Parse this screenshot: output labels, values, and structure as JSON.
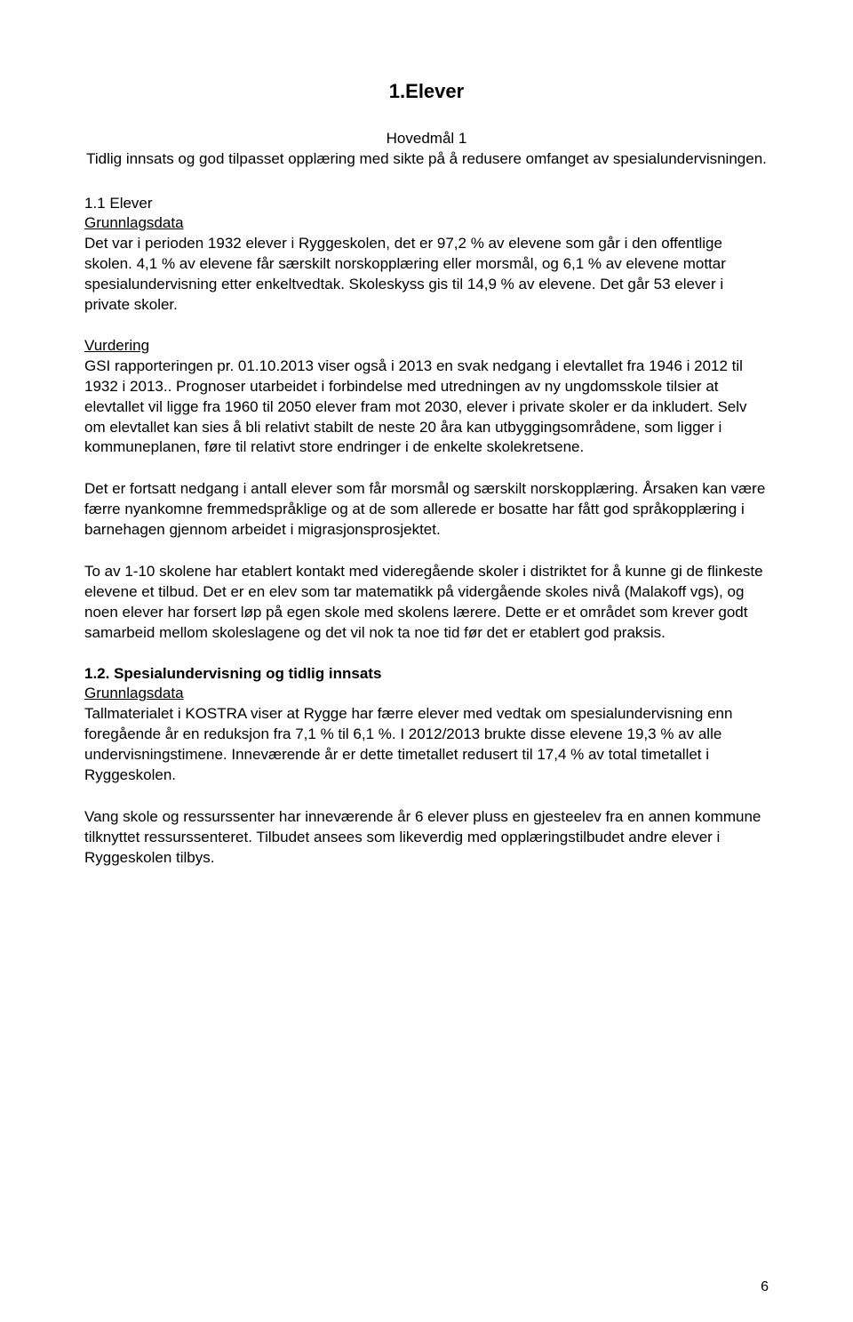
{
  "title": "1.Elever",
  "hovedmal_label": "Hovedmål 1",
  "hovedmal_text": "Tidlig innsats og god tilpasset opplæring med sikte på å redusere omfanget av spesialundervisningen.",
  "section_1_1": {
    "heading": "1.1 Elever",
    "grunnlag_label": "Grunnlagsdata",
    "grunnlag_text": "Det var i perioden 1932 elever i Ryggeskolen, det er 97,2 % av elevene som går i den offentlige skolen. 4,1 % av elevene får særskilt norskopplæring eller morsmål, og 6,1 % av elevene mottar spesialundervisning etter enkeltvedtak. Skoleskyss gis til 14,9 % av elevene. Det går 53 elever i private skoler.",
    "vurdering_label": "Vurdering",
    "vurdering_p1": "GSI rapporteringen pr. 01.10.2013 viser også i 2013 en svak nedgang i elevtallet fra 1946 i 2012 til 1932 i 2013.. Prognoser utarbeidet i forbindelse med utredningen av ny ungdomsskole tilsier at elevtallet vil ligge fra 1960 til 2050 elever fram mot 2030, elever i private skoler er da inkludert. Selv om elevtallet kan sies å bli relativt stabilt de neste 20 åra kan utbyggingsområdene, som ligger i kommuneplanen, føre til relativt store endringer i de enkelte skolekretsene.",
    "vurdering_p2": "Det er fortsatt nedgang i antall elever som får morsmål og særskilt norskopplæring. Årsaken kan være færre nyankomne fremmedspråklige og at de som allerede er bosatte har fått god språkopplæring i barnehagen gjennom arbeidet i migrasjonsprosjektet.",
    "vurdering_p3": "To av 1-10 skolene har etablert kontakt med videregående skoler i distriktet  for å kunne gi de flinkeste elevene et tilbud. Det er en elev som tar matematikk på vidergående skoles nivå (Malakoff vgs), og  noen elever har forsert løp på egen skole med skolens lærere. Dette er et området som krever godt samarbeid mellom skoleslagene og det vil nok ta noe tid før det er etablert god praksis."
  },
  "section_1_2": {
    "heading": "1.2. Spesialundervisning og tidlig innsats",
    "grunnlag_label": "Grunnlagsdata",
    "grunnlag_text": "Tallmaterialet i KOSTRA viser at Rygge har færre elever med vedtak om spesialundervisning enn foregående år en reduksjon fra 7,1 % til 6,1 %. I 2012/2013 brukte disse elevene 19,3 % av alle undervisningstimene. Inneværende år er dette timetallet redusert til 17,4 % av total timetallet i Ryggeskolen.",
    "p2": "Vang skole og ressurssenter har inneværende år 6 elever pluss en gjesteelev fra en annen kommune tilknyttet ressurssenteret. Tilbudet ansees som likeverdig med opplæringstilbudet andre elever i Ryggeskolen tilbys."
  },
  "page_number": "6"
}
